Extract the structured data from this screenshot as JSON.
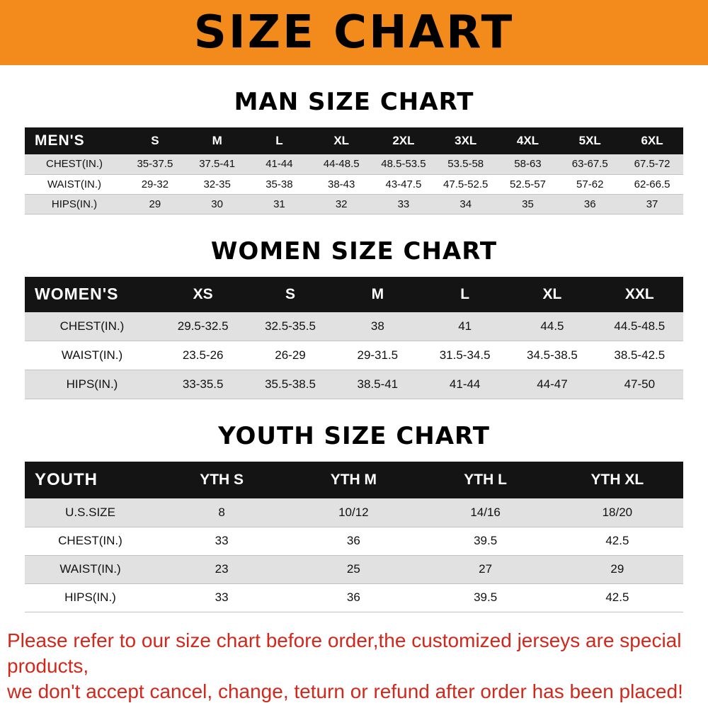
{
  "banner": {
    "title": "SIZE CHART",
    "bg_color": "#f28a1c"
  },
  "colors": {
    "table_header_bg": "#141414",
    "table_header_text": "#ffffff",
    "stripe_gray": "#e1e1e1",
    "row_white": "#ffffff",
    "notice_red": "#d2281c"
  },
  "footer": {
    "line1": "Please refer to our size chart before order,the customized jerseys are special products,",
    "line2": "we don't accept cancel, change, teturn or refund after order has been placed!"
  },
  "chart_data": [
    {
      "type": "table",
      "title": "MAN SIZE CHART",
      "corner_label": "MEN'S",
      "columns": [
        "S",
        "M",
        "L",
        "XL",
        "2XL",
        "3XL",
        "4XL",
        "5XL",
        "6XL"
      ],
      "rows": [
        {
          "label": "CHEST(IN.)",
          "values": [
            "35-37.5",
            "37.5-41",
            "41-44",
            "44-48.5",
            "48.5-53.5",
            "53.5-58",
            "58-63",
            "63-67.5",
            "67.5-72"
          ]
        },
        {
          "label": "WAIST(IN.)",
          "values": [
            "29-32",
            "32-35",
            "35-38",
            "38-43",
            "43-47.5",
            "47.5-52.5",
            "52.5-57",
            "57-62",
            "62-66.5"
          ]
        },
        {
          "label": "HIPS(IN.)",
          "values": [
            "29",
            "30",
            "31",
            "32",
            "33",
            "34",
            "35",
            "36",
            "37"
          ]
        }
      ]
    },
    {
      "type": "table",
      "title": "WOMEN SIZE CHART",
      "corner_label": "WOMEN'S",
      "columns": [
        "XS",
        "S",
        "M",
        "L",
        "XL",
        "XXL"
      ],
      "rows": [
        {
          "label": "CHEST(IN.)",
          "values": [
            "29.5-32.5",
            "32.5-35.5",
            "38",
            "41",
            "44.5",
            "44.5-48.5"
          ]
        },
        {
          "label": "WAIST(IN.)",
          "values": [
            "23.5-26",
            "26-29",
            "29-31.5",
            "31.5-34.5",
            "34.5-38.5",
            "38.5-42.5"
          ]
        },
        {
          "label": "HIPS(IN.)",
          "values": [
            "33-35.5",
            "35.5-38.5",
            "38.5-41",
            "41-44",
            "44-47",
            "47-50"
          ]
        }
      ]
    },
    {
      "type": "table",
      "title": "YOUTH SIZE CHART",
      "corner_label": "YOUTH",
      "columns": [
        "YTH S",
        "YTH M",
        "YTH L",
        "YTH XL"
      ],
      "rows": [
        {
          "label": "U.S.SIZE",
          "values": [
            "8",
            "10/12",
            "14/16",
            "18/20"
          ]
        },
        {
          "label": "CHEST(IN.)",
          "values": [
            "33",
            "36",
            "39.5",
            "42.5"
          ]
        },
        {
          "label": "WAIST(IN.)",
          "values": [
            "23",
            "25",
            "27",
            "29"
          ]
        },
        {
          "label": "HIPS(IN.)",
          "values": [
            "33",
            "36",
            "39.5",
            "42.5"
          ]
        }
      ]
    }
  ]
}
